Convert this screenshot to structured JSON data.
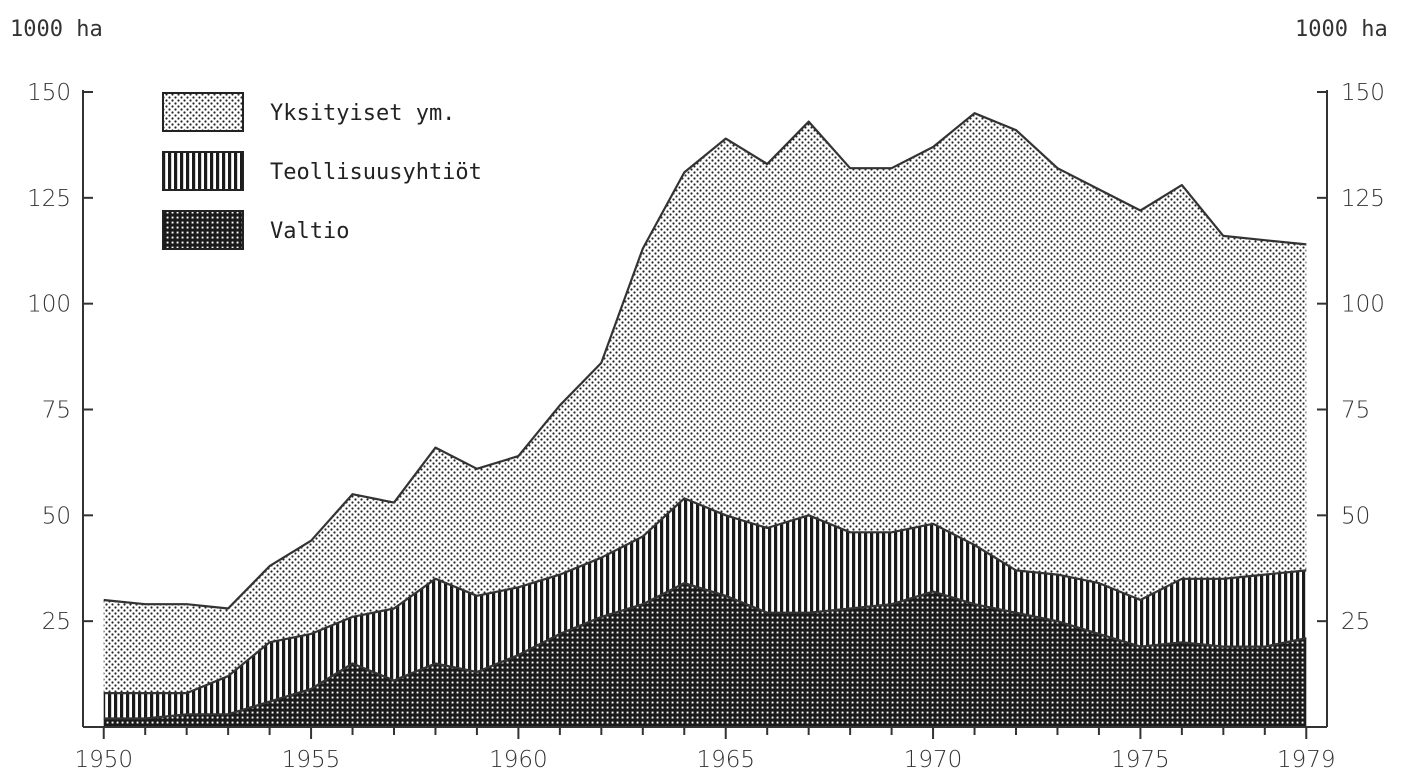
{
  "chart_data": {
    "type": "area",
    "stacked": true,
    "unit_left": "1000 ha",
    "unit_right": "1000 ha",
    "years": [
      1950,
      1951,
      1952,
      1953,
      1954,
      1955,
      1956,
      1957,
      1958,
      1959,
      1960,
      1961,
      1962,
      1963,
      1964,
      1965,
      1966,
      1967,
      1968,
      1969,
      1970,
      1971,
      1972,
      1973,
      1974,
      1975,
      1976,
      1977,
      1978,
      1979
    ],
    "x_ticks": [
      "1950",
      "1955",
      "1960",
      "1965",
      "1970",
      "1975",
      "1979"
    ],
    "x_tick_values": [
      1950,
      1955,
      1960,
      1965,
      1970,
      1975,
      1979
    ],
    "y_ticks": [
      "25",
      "50",
      "75",
      "100",
      "125",
      "150"
    ],
    "y_tick_values": [
      25,
      50,
      75,
      100,
      125,
      150
    ],
    "ylim": [
      0,
      150
    ],
    "series": [
      {
        "name": "Valtio",
        "pattern": "grid",
        "values": [
          2,
          2,
          3,
          3,
          6,
          9,
          15,
          11,
          15,
          13,
          17,
          22,
          26,
          29,
          34,
          31,
          27,
          27,
          28,
          29,
          32,
          29,
          27,
          25,
          22,
          19,
          20,
          19,
          19,
          21
        ]
      },
      {
        "name": "Teollisuusyhtiöt",
        "pattern": "vertical-stripes",
        "values": [
          6,
          6,
          5,
          9,
          14,
          13,
          11,
          17,
          20,
          18,
          16,
          14,
          14,
          16,
          20,
          19,
          20,
          23,
          18,
          17,
          16,
          14,
          10,
          11,
          12,
          11,
          15,
          16,
          17,
          16
        ]
      },
      {
        "name": "Yksityiset ym.",
        "pattern": "dots",
        "values": [
          22,
          21,
          21,
          16,
          18,
          22,
          29,
          25,
          31,
          30,
          31,
          40,
          46,
          68,
          77,
          89,
          86,
          93,
          86,
          86,
          89,
          102,
          104,
          96,
          93,
          92,
          93,
          81,
          79,
          77
        ]
      }
    ],
    "legend": {
      "placement": "top-left",
      "order": [
        "Yksityiset ym.",
        "Teollisuusyhtiöt",
        "Valtio"
      ]
    },
    "grid": false
  }
}
